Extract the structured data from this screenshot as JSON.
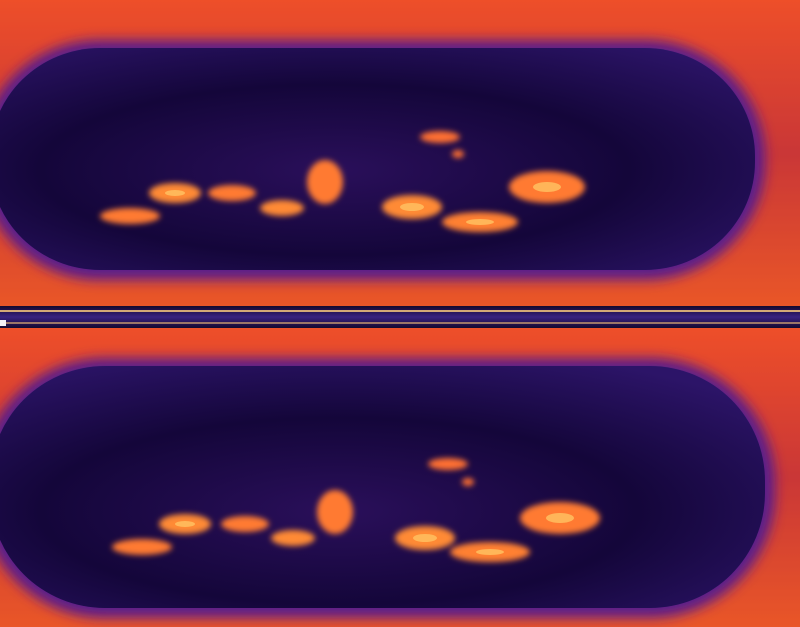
{
  "image": {
    "subject": "thermal-image-pair",
    "palette": {
      "background_dark": "#120428",
      "interior": "#1c0a45",
      "interior_edge": "#3a1a7a",
      "rim_outer": "#c0203a",
      "rim_hot": "#ff6a20",
      "hotspot": "#ff8a30",
      "hotspot_core": "#ffc060",
      "separator": "#2a1660"
    }
  }
}
